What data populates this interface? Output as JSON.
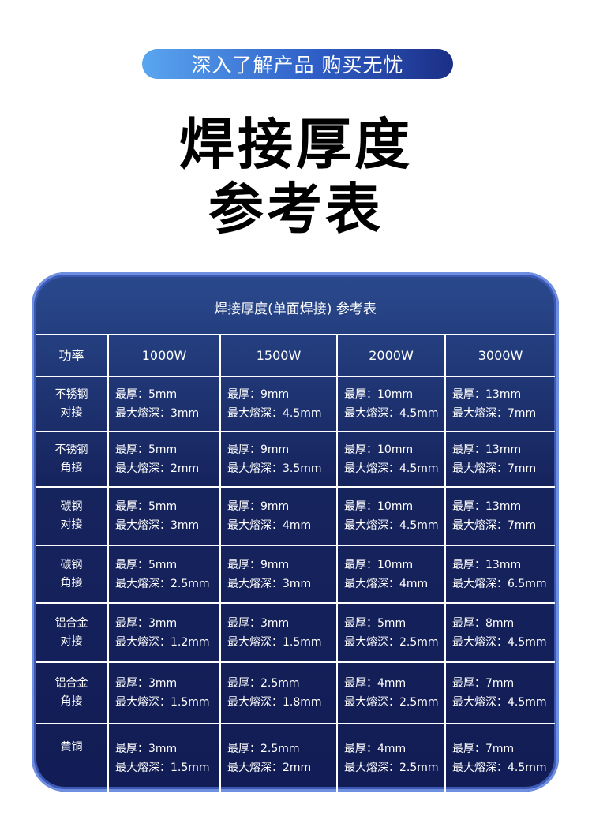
{
  "banner": "深入了解产品 购买无忧",
  "title_line1": "焊接厚度",
  "title_line2": "参考表",
  "table": {
    "title": "焊接厚度(单面焊接) 参考表",
    "headers": [
      "功率",
      "1000W",
      "1500W",
      "2000W",
      "3000W"
    ],
    "rows": [
      {
        "material": [
          "不锈钢",
          "对接"
        ],
        "cells": [
          [
            "最厚：5mm",
            "最大熔深：3mm"
          ],
          [
            "最厚：9mm",
            "最大熔深：4.5mm"
          ],
          [
            "最厚：10mm",
            "最大熔深：4.5mm"
          ],
          [
            "最厚：13mm",
            "最大熔深：7mm"
          ]
        ]
      },
      {
        "material": [
          "不锈钢",
          "角接"
        ],
        "cells": [
          [
            "最厚：5mm",
            "最大熔深：2mm"
          ],
          [
            "最厚：9mm",
            "最大熔深：3.5mm"
          ],
          [
            "最厚：10mm",
            "最大熔深：4.5mm"
          ],
          [
            "最厚：13mm",
            "最大熔深：7mm"
          ]
        ]
      },
      {
        "material": [
          "碳钢",
          "对接"
        ],
        "cells": [
          [
            "最厚：5mm",
            "最大熔深：3mm"
          ],
          [
            "最厚：9mm",
            "最大熔深：4mm"
          ],
          [
            "最厚：10mm",
            "最大熔深：4.5mm"
          ],
          [
            "最厚：13mm",
            "最大熔深：7mm"
          ]
        ]
      },
      {
        "material": [
          "碳钢",
          "角接"
        ],
        "cells": [
          [
            "最厚：5mm",
            "最大熔深：2.5mm"
          ],
          [
            "最厚：9mm",
            "最大熔深：3mm"
          ],
          [
            "最厚：10mm",
            "最大熔深：4mm"
          ],
          [
            "最厚：13mm",
            "最大熔深：6.5mm"
          ]
        ]
      },
      {
        "material": [
          "铝合金",
          "对接"
        ],
        "cells": [
          [
            "最厚：3mm",
            "最大熔深：1.2mm"
          ],
          [
            "最厚：3mm",
            "最大熔深：1.5mm"
          ],
          [
            "最厚：5mm",
            "最大熔深：2.5mm"
          ],
          [
            "最厚：8mm",
            "最大熔深：4.5mm"
          ]
        ]
      },
      {
        "material": [
          "铝合金",
          "角接"
        ],
        "cells": [
          [
            "最厚：3mm",
            "最大熔深：1.5mm"
          ],
          [
            "最厚：2.5mm",
            "最大熔深：1.8mm"
          ],
          [
            "最厚：4mm",
            "最大熔深：2.5mm"
          ],
          [
            "最厚：7mm",
            "最大熔深：4.5mm"
          ]
        ]
      },
      {
        "material": [
          "黄铜"
        ],
        "cells": [
          [
            "最厚：3mm",
            "最大熔深：1.5mm"
          ],
          [
            "最厚：2.5mm",
            "最大熔深：2mm"
          ],
          [
            "最厚：4mm",
            "最大熔深：2.5mm"
          ],
          [
            "最厚：7mm",
            "最大熔深：4.5mm"
          ]
        ]
      }
    ]
  }
}
